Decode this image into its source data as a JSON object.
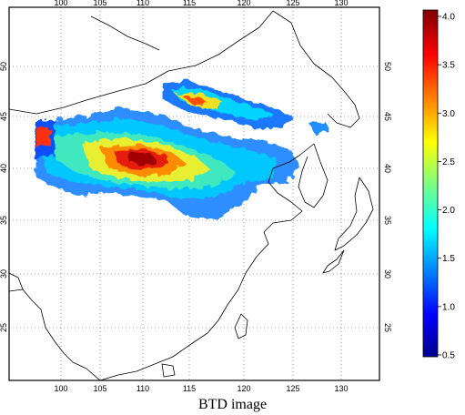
{
  "caption": "BTD image",
  "map": {
    "lon_ticks": [
      "100",
      "105",
      "110",
      "115",
      "120",
      "125",
      "130"
    ],
    "lat_ticks": [
      "50",
      "45",
      "40",
      "35",
      "30",
      "25"
    ],
    "gridline_style": "dotted",
    "coastline_color": "#000000"
  },
  "colorbar": {
    "min": 0.5,
    "max": 4.0,
    "ticks": [
      "4.0",
      "3.5",
      "3.0",
      "2.5",
      "2.0",
      "1.5",
      "1.0",
      "0.5"
    ],
    "colormap": "jet",
    "colors": [
      "#00008f",
      "#0000ff",
      "#00bfff",
      "#7fff7f",
      "#ffff00",
      "#ff8000",
      "#ff0000",
      "#800000"
    ]
  }
}
